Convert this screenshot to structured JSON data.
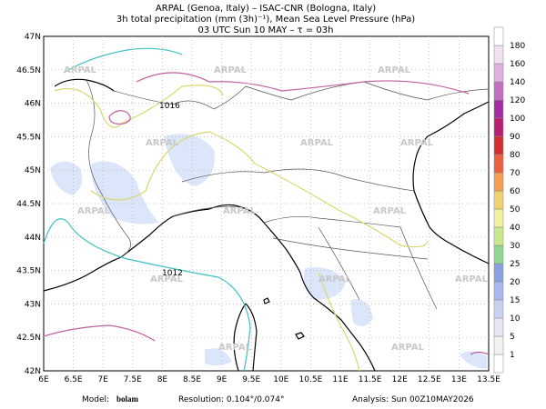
{
  "header": {
    "lines": [
      "ARPAL (Genoa, Italy)  –  ISAC-CNR (Bologna, Italy)",
      "3h total precipitation (mm (3h)⁻¹), Mean Sea Level Pressure (hPa)",
      "03 UTC Sun 10 MAY  –  τ = 03h"
    ]
  },
  "map": {
    "lat_labels": [
      "47N",
      "46.5N",
      "46N",
      "45.5N",
      "45N",
      "44.5N",
      "44N",
      "43.5N",
      "43N",
      "42.5N",
      "42N"
    ],
    "lon_labels": [
      "6E",
      "6.5E",
      "7E",
      "7.5E",
      "8E",
      "8.5E",
      "9E",
      "9.5E",
      "10E",
      "10.5E",
      "11E",
      "11.5E",
      "12E",
      "12.5E",
      "13E",
      "13.5E"
    ],
    "watermark": "ARPAL",
    "contour_labels": [
      "1016",
      "1012"
    ]
  },
  "colorbar": {
    "labels": [
      1,
      5,
      10,
      15,
      20,
      25,
      30,
      40,
      50,
      60,
      70,
      80,
      90,
      100,
      120,
      140,
      160,
      180
    ]
  },
  "footer": {
    "model_label": "Model:",
    "model": "bolam",
    "resolution": "Resolution: 0.104°/0.074°",
    "analysis": "Analysis: Sun 00Z10MAY2026"
  }
}
